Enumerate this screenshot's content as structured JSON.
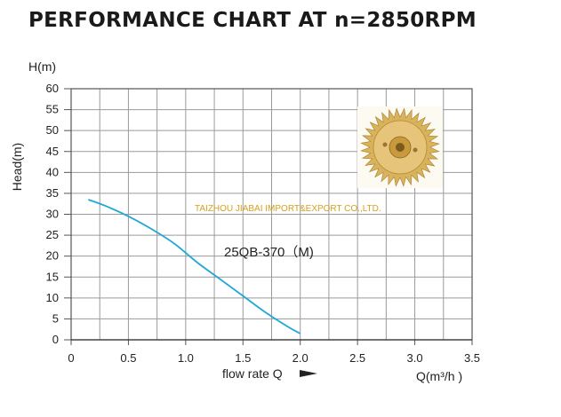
{
  "title": "PERFORMANCE CHART AT n=2850RPM",
  "watermark": "TAIZHOU JIABAI IMPORT&EXPORT CO.,LTD.",
  "colors": {
    "curve": "#1fa8d8",
    "grid": "#9a9a9a",
    "watermark": "#d4a020",
    "impeller": "#c9a24a"
  },
  "impeller_icon": "brass-impeller-photo",
  "chart_data": {
    "type": "line",
    "title": "PERFORMANCE CHART AT n=2850RPM",
    "ylabel_top": "H(m)",
    "ylabel": "Head(m)",
    "xlabel": "flow rate Q",
    "xlabel_right": "Q(m³/h )",
    "xlim": [
      0,
      3.5
    ],
    "ylim": [
      0,
      60
    ],
    "xticks": [
      "0",
      "0.5",
      "1.0",
      "1.5",
      "2.0",
      "2.5",
      "3.0",
      "3.5"
    ],
    "yticks": [
      "0",
      "5",
      "10",
      "15",
      "20",
      "25",
      "30",
      "35",
      "40",
      "45",
      "50",
      "55",
      "60"
    ],
    "grid": true,
    "series": [
      {
        "name": "25QB-370（M)",
        "x": [
          0.15,
          0.3,
          0.5,
          0.7,
          0.9,
          1.1,
          1.3,
          1.5,
          1.7,
          1.9,
          2.0
        ],
        "y": [
          33.5,
          32.0,
          29.5,
          26.5,
          23.0,
          18.5,
          14.5,
          10.5,
          6.5,
          3.0,
          1.5
        ]
      }
    ]
  }
}
